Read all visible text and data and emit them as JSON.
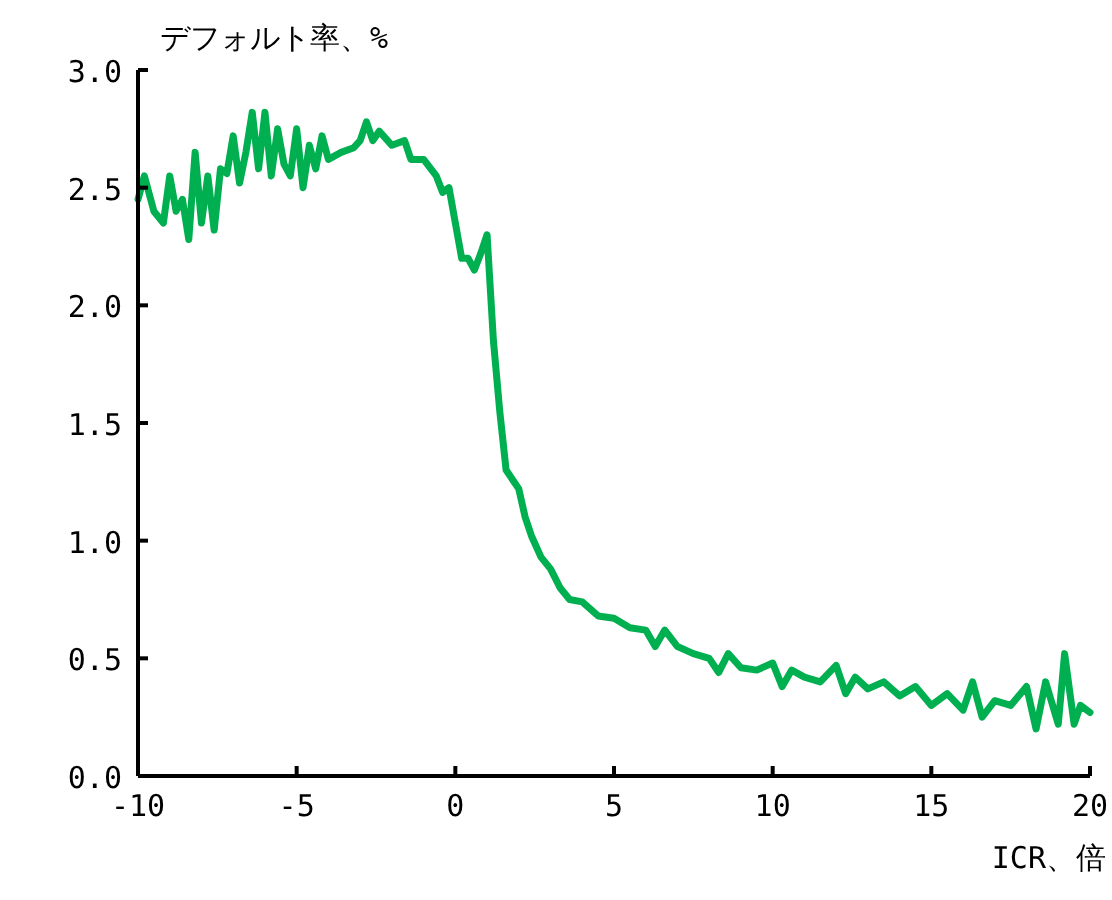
{
  "chart_data": {
    "type": "line",
    "ylabel": "デフォルト率、%",
    "xlabel": "ICR、倍",
    "xlim": [
      -10,
      20
    ],
    "xticks": [
      {
        "value": -10,
        "label": "-10"
      },
      {
        "value": -5,
        "label": "-5"
      },
      0,
      5,
      10,
      15,
      20
    ],
    "ylim": [
      0,
      3
    ],
    "yticks": [
      {
        "value": 0,
        "label": "0.0"
      },
      {
        "value": 0.5,
        "label": "0.5"
      },
      {
        "value": 1,
        "label": "1.0"
      },
      {
        "value": 1.5,
        "label": "1.5"
      },
      {
        "value": 2,
        "label": "2.0"
      },
      {
        "value": 2.5,
        "label": "2.5"
      },
      {
        "value": 3,
        "label": "3.0"
      }
    ],
    "series": [
      {
        "color": "#00b050",
        "x": [
          -10,
          -9.8,
          -9.5,
          -9.2,
          -9.0,
          -8.8,
          -8.6,
          -8.4,
          -8.2,
          -8.0,
          -7.8,
          -7.6,
          -7.4,
          -7.2,
          -7.0,
          -6.8,
          -6.6,
          -6.4,
          -6.2,
          -6.0,
          -5.8,
          -5.6,
          -5.4,
          -5.2,
          -5.0,
          -4.8,
          -4.6,
          -4.4,
          -4.2,
          -4.0,
          -3.6,
          -3.2,
          -3.0,
          -2.8,
          -2.6,
          -2.4,
          -2.0,
          -1.6,
          -1.4,
          -1.0,
          -0.6,
          -0.4,
          -0.2,
          0.0,
          0.2,
          0.4,
          0.6,
          0.8,
          1.0,
          1.2,
          1.4,
          1.6,
          2.0,
          2.2,
          2.4,
          2.7,
          3.0,
          3.3,
          3.6,
          4.0,
          4.5,
          5.0,
          5.5,
          6.0,
          6.3,
          6.6,
          7.0,
          7.5,
          8.0,
          8.3,
          8.6,
          9.0,
          9.5,
          10.0,
          10.3,
          10.6,
          11.0,
          11.5,
          12.0,
          12.3,
          12.6,
          13.0,
          13.5,
          14.0,
          14.5,
          15.0,
          15.5,
          16.0,
          16.3,
          16.6,
          17.0,
          17.5,
          18.0,
          18.3,
          18.6,
          19.0,
          19.2,
          19.5,
          19.7,
          20.0
        ],
        "values": [
          2.45,
          2.55,
          2.4,
          2.35,
          2.55,
          2.4,
          2.45,
          2.28,
          2.65,
          2.35,
          2.55,
          2.32,
          2.58,
          2.56,
          2.72,
          2.52,
          2.65,
          2.82,
          2.58,
          2.82,
          2.55,
          2.75,
          2.6,
          2.55,
          2.75,
          2.5,
          2.68,
          2.58,
          2.72,
          2.62,
          2.65,
          2.67,
          2.7,
          2.78,
          2.7,
          2.74,
          2.68,
          2.7,
          2.62,
          2.62,
          2.55,
          2.48,
          2.5,
          2.35,
          2.2,
          2.2,
          2.15,
          2.22,
          2.3,
          1.85,
          1.55,
          1.3,
          1.22,
          1.1,
          1.02,
          0.93,
          0.88,
          0.8,
          0.75,
          0.74,
          0.68,
          0.67,
          0.63,
          0.62,
          0.55,
          0.62,
          0.55,
          0.52,
          0.5,
          0.44,
          0.52,
          0.46,
          0.45,
          0.48,
          0.38,
          0.45,
          0.42,
          0.4,
          0.47,
          0.35,
          0.42,
          0.37,
          0.4,
          0.34,
          0.38,
          0.3,
          0.35,
          0.28,
          0.4,
          0.25,
          0.32,
          0.3,
          0.38,
          0.2,
          0.4,
          0.22,
          0.52,
          0.22,
          0.3,
          0.27
        ]
      }
    ]
  }
}
